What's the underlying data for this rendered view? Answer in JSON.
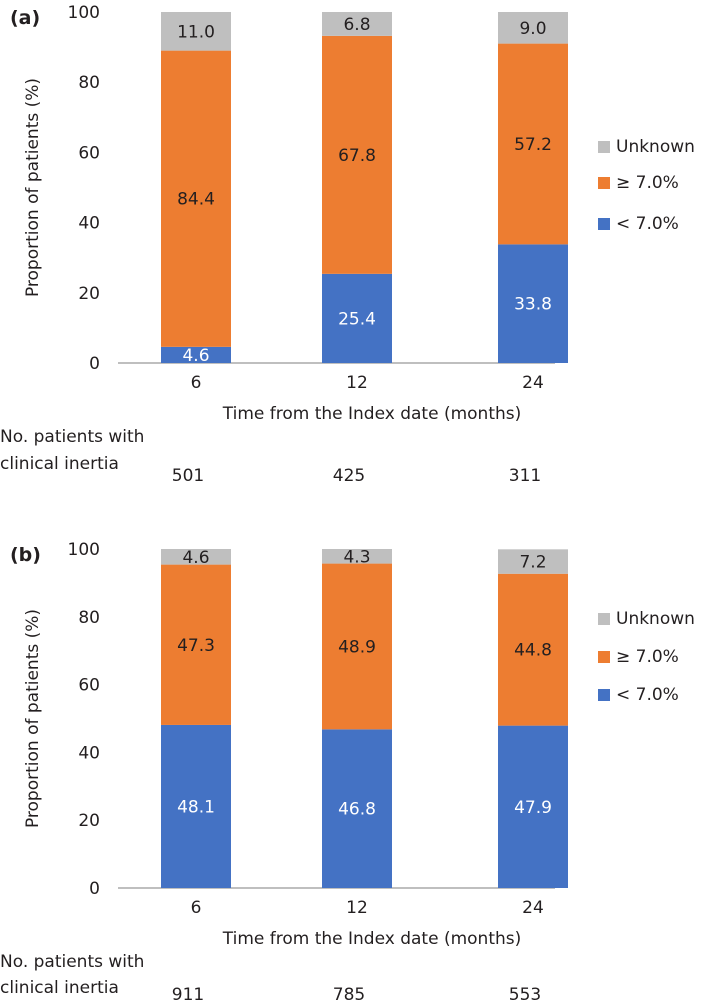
{
  "colors": {
    "below": "#4472c4",
    "above": "#ed7d31",
    "unknown": "#bfbfbf",
    "axis": "#7f7f7f",
    "text": "#231f20",
    "label_light": "#ffffff",
    "label_dark": "#231f20"
  },
  "footer_label_line1": "No. patients with",
  "footer_label_line2": "clinical inertia",
  "chart_data": [
    {
      "type": "bar",
      "stacked": true,
      "panel_label": "(a)",
      "categories": [
        "6",
        "12",
        "24"
      ],
      "series": [
        {
          "key": "below",
          "name": "< 7.0%",
          "values": [
            4.6,
            25.4,
            33.8
          ],
          "labels": [
            "4.6",
            "25.4",
            "33.8"
          ]
        },
        {
          "key": "above",
          "name": "≥ 7.0%",
          "values": [
            84.4,
            67.8,
            57.2
          ],
          "labels": [
            "84.4",
            "67.8",
            "57.2"
          ]
        },
        {
          "key": "unknown",
          "name": "Unknown",
          "values": [
            11.0,
            6.8,
            9.0
          ],
          "labels": [
            "11.0",
            "6.8",
            "9.0"
          ]
        }
      ],
      "legend_order": [
        "unknown",
        "above",
        "below"
      ],
      "ylim": [
        0,
        100
      ],
      "yticks": [
        "0",
        "20",
        "40",
        "60",
        "80",
        "100"
      ],
      "ylabel": "Proportion of patients (%)",
      "xlabel": "Time from the Index date (months)",
      "patient_counts": [
        "501",
        "425",
        "311"
      ]
    },
    {
      "type": "bar",
      "stacked": true,
      "panel_label": "(b)",
      "categories": [
        "6",
        "12",
        "24"
      ],
      "series": [
        {
          "key": "below",
          "name": "< 7.0%",
          "values": [
            48.1,
            46.8,
            47.9
          ],
          "labels": [
            "48.1",
            "46.8",
            "47.9"
          ]
        },
        {
          "key": "above",
          "name": "≥ 7.0%",
          "values": [
            47.3,
            48.9,
            44.8
          ],
          "labels": [
            "47.3",
            "48.9",
            "44.8"
          ]
        },
        {
          "key": "unknown",
          "name": "Unknown",
          "values": [
            4.6,
            4.3,
            7.2
          ],
          "labels": [
            "4.6",
            "4.3",
            "7.2"
          ]
        }
      ],
      "legend_order": [
        "unknown",
        "above",
        "below"
      ],
      "ylim": [
        0,
        100
      ],
      "yticks": [
        "0",
        "20",
        "40",
        "60",
        "80",
        "100"
      ],
      "ylabel": "Proportion of patients (%)",
      "xlabel": "Time from the Index date (months)",
      "patient_counts": [
        "911",
        "785",
        "553"
      ]
    }
  ]
}
